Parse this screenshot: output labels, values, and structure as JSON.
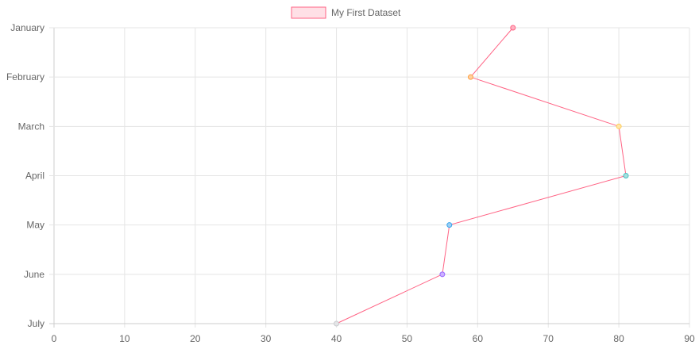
{
  "chart_data": {
    "type": "line",
    "orientation": "horizontal",
    "title": "",
    "xlabel": "",
    "ylabel": "",
    "categories": [
      "January",
      "February",
      "March",
      "April",
      "May",
      "June",
      "July"
    ],
    "xlim": [
      0,
      90
    ],
    "x_ticks": [
      0,
      10,
      20,
      30,
      40,
      50,
      60,
      70,
      80,
      90
    ],
    "grid": true,
    "legend": {
      "position": "top-center",
      "entries": [
        {
          "label": "My First Dataset",
          "fill": "#ffe0e6",
          "stroke": "#ff6384"
        }
      ]
    },
    "series": [
      {
        "name": "My First Dataset",
        "values": [
          65,
          59,
          80,
          81,
          56,
          55,
          40
        ],
        "line_color": "#ff6384",
        "point_colors": [
          {
            "fill": "#ffb1c1",
            "stroke": "#ff6384"
          },
          {
            "fill": "#ffcf9f",
            "stroke": "#ff9f40"
          },
          {
            "fill": "#ffe6aa",
            "stroke": "#ffcd56"
          },
          {
            "fill": "#a5dfdf",
            "stroke": "#4bc0c0"
          },
          {
            "fill": "#9ad0f5",
            "stroke": "#36a2eb"
          },
          {
            "fill": "#ccb2ff",
            "stroke": "#9966ff"
          },
          {
            "fill": "#e4e5e7",
            "stroke": "#c9cbcf"
          }
        ]
      }
    ]
  }
}
